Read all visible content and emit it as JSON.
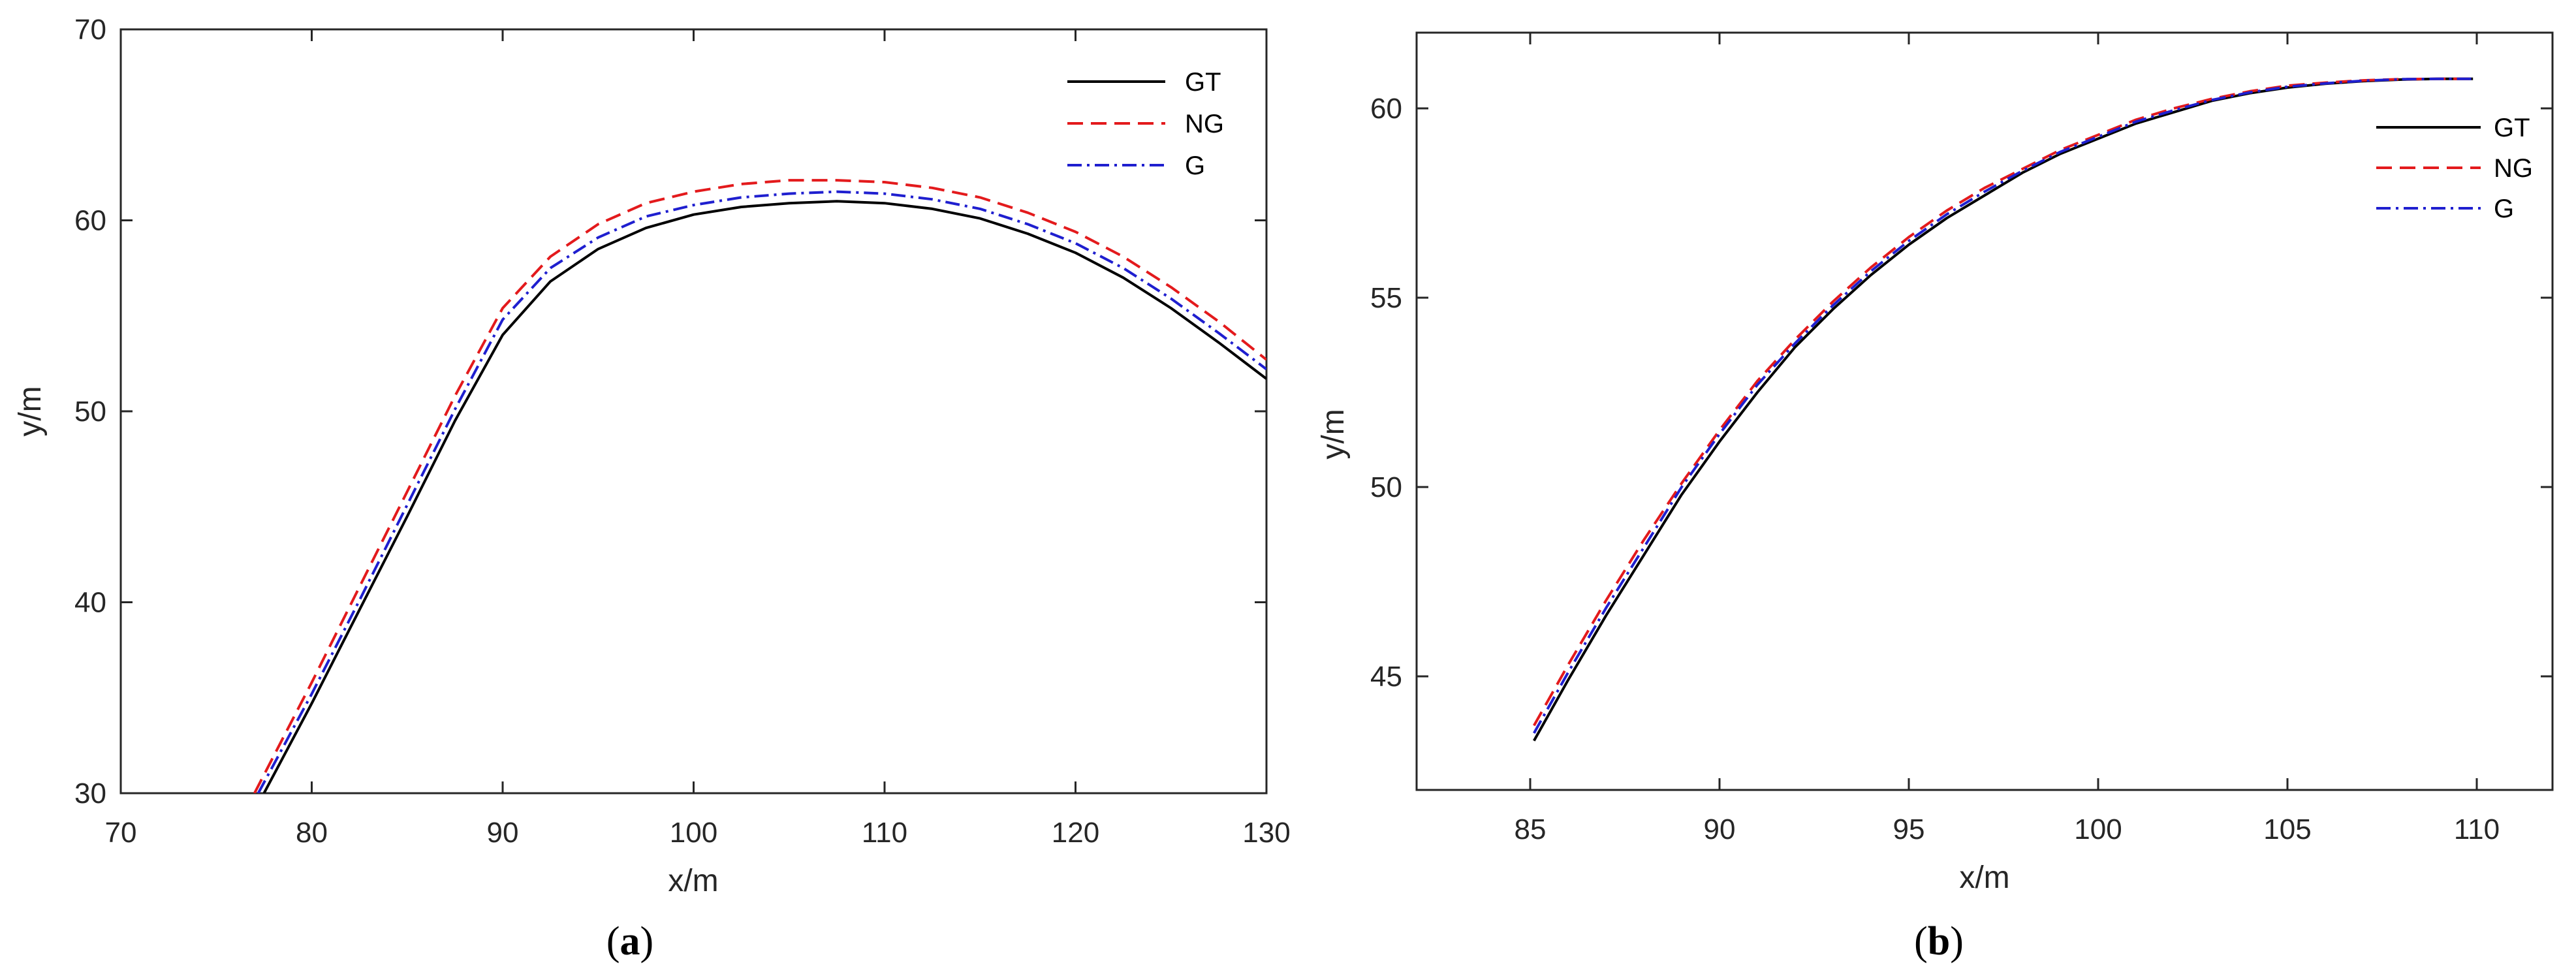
{
  "figure": {
    "panel_labels": [
      {
        "open": "(",
        "letter": "a",
        "close": ")"
      },
      {
        "open": "(",
        "letter": "b",
        "close": ")"
      }
    ]
  },
  "chart_data": [
    {
      "type": "line",
      "xlabel": "x/m",
      "ylabel": "y/m",
      "xlim": [
        70,
        130
      ],
      "ylim": [
        30,
        70
      ],
      "xticks": [
        70,
        80,
        90,
        100,
        110,
        120,
        130
      ],
      "yticks": [
        30,
        40,
        50,
        60,
        70
      ],
      "grid": false,
      "legend_position": "top-right",
      "series": [
        {
          "name": "GT",
          "color": "#000000",
          "dash": "solid",
          "x": [
            77.5,
            80,
            82.5,
            85,
            87.5,
            90,
            92.5,
            95,
            97.5,
            100,
            102.5,
            105,
            107.5,
            110,
            112.5,
            115,
            117.5,
            120,
            122.5,
            125,
            127.5,
            130
          ],
          "y": [
            30.0,
            34.7,
            39.6,
            44.5,
            49.5,
            54.0,
            56.8,
            58.5,
            59.6,
            60.3,
            60.7,
            60.9,
            61.0,
            60.9,
            60.6,
            60.1,
            59.3,
            58.3,
            57.0,
            55.4,
            53.6,
            51.7
          ]
        },
        {
          "name": "NG",
          "color": "#e31a1c",
          "dash": "dashed",
          "x": [
            77.0,
            80,
            82.5,
            85,
            87.5,
            90,
            92.5,
            95,
            97.5,
            100,
            102.5,
            105,
            107.5,
            110,
            112.5,
            115,
            117.5,
            120,
            122.5,
            125,
            127.5,
            130
          ],
          "y": [
            30.0,
            35.8,
            40.8,
            45.8,
            50.8,
            55.4,
            58.1,
            59.8,
            60.9,
            61.5,
            61.9,
            62.1,
            62.1,
            62.0,
            61.7,
            61.2,
            60.4,
            59.4,
            58.1,
            56.5,
            54.7,
            52.7
          ]
        },
        {
          "name": "G",
          "color": "#1f1fcf",
          "dash": "dashdot",
          "x": [
            77.2,
            80,
            82.5,
            85,
            87.5,
            90,
            92.5,
            95,
            97.5,
            100,
            102.5,
            105,
            107.5,
            110,
            112.5,
            115,
            117.5,
            120,
            122.5,
            125,
            127.5,
            130
          ],
          "y": [
            30.0,
            35.2,
            40.1,
            45.1,
            50.1,
            54.8,
            57.5,
            59.1,
            60.2,
            60.8,
            61.2,
            61.4,
            61.5,
            61.4,
            61.1,
            60.6,
            59.8,
            58.8,
            57.5,
            55.9,
            54.1,
            52.2
          ]
        }
      ]
    },
    {
      "type": "line",
      "xlabel": "x/m",
      "ylabel": "y/m",
      "xlim": [
        82,
        112
      ],
      "ylim": [
        42,
        62
      ],
      "xticks": [
        85,
        90,
        95,
        100,
        105,
        110
      ],
      "yticks": [
        45,
        50,
        55,
        60
      ],
      "grid": false,
      "legend_position": "top-right",
      "series": [
        {
          "name": "GT",
          "color": "#000000",
          "dash": "solid",
          "x": [
            85.1,
            86,
            87,
            88,
            89,
            90,
            91,
            92,
            93,
            94,
            95,
            96,
            97,
            98,
            99,
            100,
            101,
            102,
            103,
            104,
            105,
            106,
            107,
            108,
            109,
            109.9
          ],
          "y": [
            43.3,
            44.9,
            46.6,
            48.2,
            49.8,
            51.2,
            52.5,
            53.7,
            54.7,
            55.6,
            56.4,
            57.1,
            57.7,
            58.3,
            58.8,
            59.2,
            59.6,
            59.9,
            60.2,
            60.4,
            60.55,
            60.65,
            60.72,
            60.76,
            60.78,
            60.78
          ]
        },
        {
          "name": "NG",
          "color": "#e31a1c",
          "dash": "dashed",
          "x": [
            85.1,
            86,
            87,
            88,
            89,
            90,
            91,
            92,
            93,
            94,
            95,
            96,
            97,
            98,
            99,
            100,
            101,
            102,
            103,
            104,
            105,
            106,
            107,
            108,
            109,
            109.9
          ],
          "y": [
            43.7,
            45.3,
            47.0,
            48.6,
            50.1,
            51.5,
            52.8,
            53.9,
            54.9,
            55.8,
            56.6,
            57.3,
            57.9,
            58.4,
            58.9,
            59.3,
            59.7,
            60.0,
            60.25,
            60.45,
            60.6,
            60.68,
            60.74,
            60.77,
            60.78,
            60.78
          ]
        },
        {
          "name": "G",
          "color": "#1f1fcf",
          "dash": "dashdot",
          "x": [
            85.1,
            86,
            87,
            88,
            89,
            90,
            91,
            92,
            93,
            94,
            95,
            96,
            97,
            98,
            99,
            100,
            101,
            102,
            103,
            104,
            105,
            106,
            107,
            108,
            109,
            109.9
          ],
          "y": [
            43.5,
            45.1,
            46.8,
            48.4,
            50.0,
            51.4,
            52.7,
            53.8,
            54.8,
            55.7,
            56.5,
            57.2,
            57.8,
            58.35,
            58.85,
            59.25,
            59.65,
            59.95,
            60.22,
            60.42,
            60.57,
            60.66,
            60.73,
            60.77,
            60.78,
            60.78
          ]
        }
      ]
    }
  ]
}
